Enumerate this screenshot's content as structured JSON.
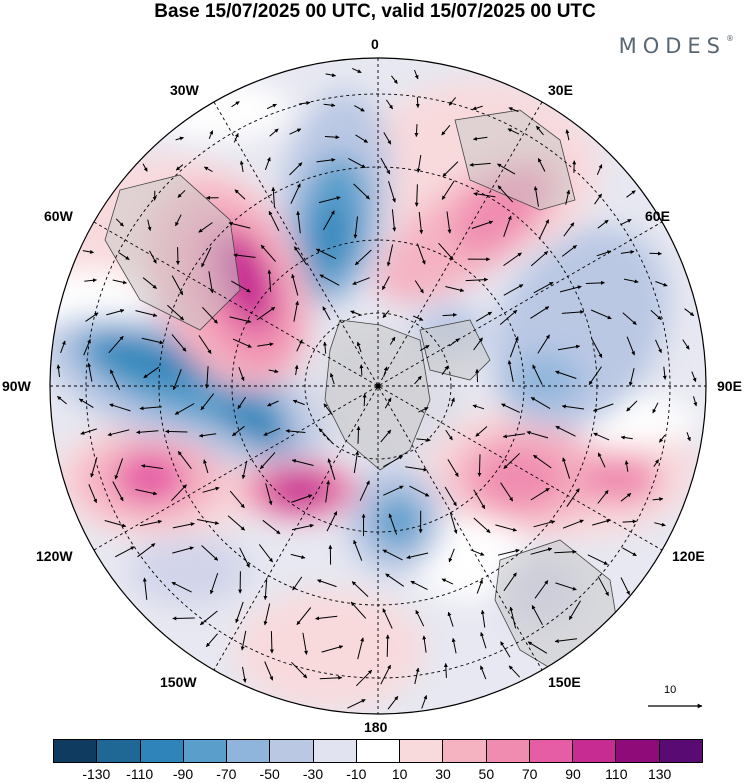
{
  "title": "Base 15/07/2025 00 UTC, valid 15/07/2025 00 UTC",
  "brand": "MODES",
  "brand_mark": "®",
  "lon_labels": {
    "top": "0",
    "top_right": "30E",
    "right_upper": "60E",
    "right": "90E",
    "right_lower": "120E",
    "bottom_right": "150E",
    "bottom": "180",
    "bottom_left": "150W",
    "left_lower": "120W",
    "left": "90W",
    "left_upper": "60W",
    "top_left": "30W"
  },
  "reference_vector_label": "10",
  "colorbar": {
    "ticks": [
      "-130",
      "-110",
      "-90",
      "-70",
      "-50",
      "-30",
      "-10",
      "10",
      "30",
      "50",
      "70",
      "90",
      "110",
      "130"
    ],
    "colors": [
      "#0e3b5f",
      "#1f6795",
      "#2f84ba",
      "#5a9fcc",
      "#8fb5dc",
      "#bac8e4",
      "#e1e3f0",
      "#ffffff",
      "#f8dadd",
      "#f5b3c2",
      "#f08cb0",
      "#e65da6",
      "#c72c93",
      "#8e0b79",
      "#5a0b73"
    ]
  }
}
